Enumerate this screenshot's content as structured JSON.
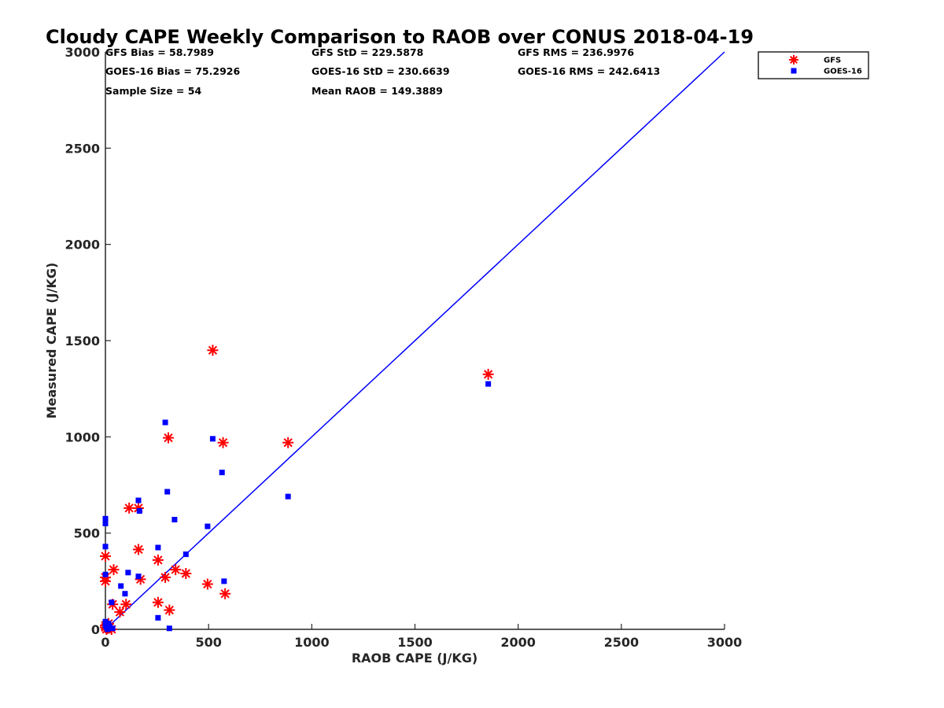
{
  "chart_data": {
    "type": "scatter",
    "title": "Cloudy CAPE Weekly Comparison to RAOB over CONUS 2018-04-19",
    "xlabel": "RAOB CAPE (J/KG)",
    "ylabel": "Measured CAPE (J/KG)",
    "xlim": [
      0,
      3000
    ],
    "ylim": [
      0,
      3000
    ],
    "xticks": [
      0,
      500,
      1000,
      1500,
      2000,
      2500,
      3000
    ],
    "yticks": [
      0,
      500,
      1000,
      1500,
      2000,
      2500,
      3000
    ],
    "grid": false,
    "legend_position": "top-right",
    "stats": [
      [
        "GFS Bias = 58.7989",
        "GFS StD = 229.5878",
        "GFS RMS = 236.9976"
      ],
      [
        "GOES-16 Bias = 75.2926",
        "GOES-16 StD = 230.6639",
        "GOES-16 RMS = 242.6413"
      ],
      [
        "Sample Size = 54",
        "Mean RAOB = 149.3889",
        ""
      ]
    ],
    "reference_line": {
      "x": [
        0,
        3000
      ],
      "y": [
        0,
        3000
      ],
      "color": "#0000ff"
    },
    "series": [
      {
        "name": "GFS",
        "marker": "asterisk",
        "color": "#ff0000",
        "points": [
          [
            0,
            380
          ],
          [
            0,
            270
          ],
          [
            0,
            250
          ],
          [
            0,
            20
          ],
          [
            0,
            10
          ],
          [
            5,
            0
          ],
          [
            10,
            5
          ],
          [
            15,
            30
          ],
          [
            20,
            10
          ],
          [
            30,
            0
          ],
          [
            35,
            130
          ],
          [
            40,
            310
          ],
          [
            70,
            90
          ],
          [
            100,
            130
          ],
          [
            115,
            630
          ],
          [
            160,
            630
          ],
          [
            160,
            415
          ],
          [
            170,
            260
          ],
          [
            255,
            360
          ],
          [
            255,
            140
          ],
          [
            290,
            270
          ],
          [
            305,
            995
          ],
          [
            310,
            100
          ],
          [
            340,
            310
          ],
          [
            390,
            290
          ],
          [
            495,
            235
          ],
          [
            520,
            1450
          ],
          [
            570,
            970
          ],
          [
            580,
            185
          ],
          [
            885,
            970
          ],
          [
            1855,
            1325
          ]
        ]
      },
      {
        "name": "GOES-16",
        "marker": "square",
        "color": "#0000ff",
        "points": [
          [
            0,
            575
          ],
          [
            0,
            550
          ],
          [
            0,
            430
          ],
          [
            0,
            285
          ],
          [
            0,
            40
          ],
          [
            0,
            20
          ],
          [
            5,
            10
          ],
          [
            10,
            0
          ],
          [
            15,
            30
          ],
          [
            20,
            15
          ],
          [
            30,
            140
          ],
          [
            35,
            5
          ],
          [
            75,
            225
          ],
          [
            95,
            185
          ],
          [
            110,
            295
          ],
          [
            160,
            670
          ],
          [
            165,
            615
          ],
          [
            160,
            275
          ],
          [
            255,
            425
          ],
          [
            255,
            60
          ],
          [
            290,
            1075
          ],
          [
            300,
            715
          ],
          [
            310,
            5
          ],
          [
            335,
            570
          ],
          [
            390,
            390
          ],
          [
            495,
            535
          ],
          [
            520,
            990
          ],
          [
            565,
            815
          ],
          [
            575,
            250
          ],
          [
            885,
            690
          ],
          [
            1855,
            1275
          ]
        ]
      }
    ]
  }
}
